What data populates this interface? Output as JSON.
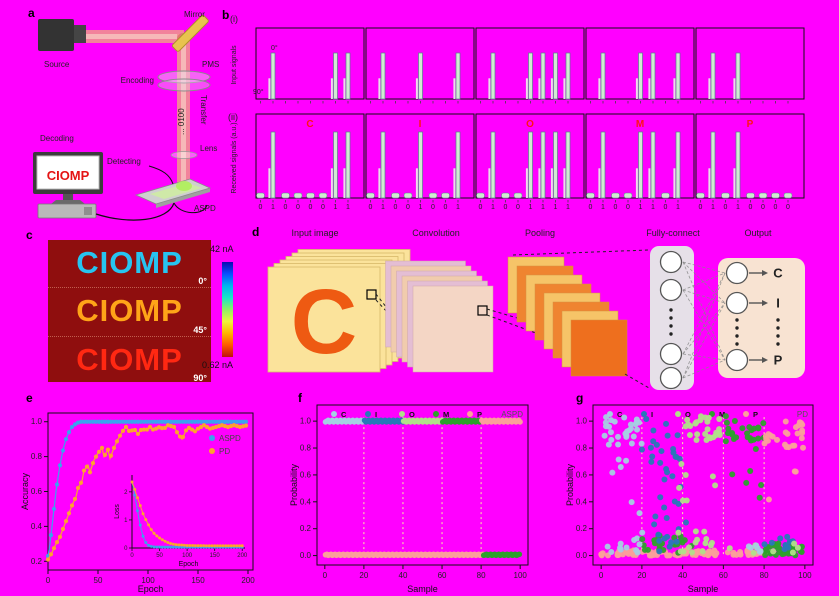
{
  "panel_a": {
    "tag": "a",
    "source": "Source",
    "mirror": "Mirror",
    "pms": "PMS",
    "encoding": "Encoding",
    "transfer": "Transfer",
    "beam_bits": "... 0100",
    "lens": "Lens",
    "decoding": "Decoding",
    "detecting": "Detecting",
    "screen_text": "CIOMP",
    "detector": "ASPD"
  },
  "panel_b": {
    "tag": "b",
    "row_input": {
      "tag": "(i)",
      "ylabel": "Input signals",
      "angle_high": "0°",
      "angle_low": "90°"
    },
    "row_received": {
      "tag": "(ii)",
      "ylabel": "Received signals (a.u.)"
    },
    "letters": [
      "C",
      "I",
      "O",
      "M",
      "P"
    ],
    "letter_color": "#ff1414",
    "bits": [
      [
        0,
        1,
        0,
        0,
        0,
        0,
        1,
        1
      ],
      [
        0,
        1,
        0,
        0,
        1,
        0,
        0,
        1
      ],
      [
        0,
        1,
        0,
        0,
        1,
        1,
        1,
        1
      ],
      [
        0,
        1,
        0,
        0,
        1,
        1,
        0,
        1
      ],
      [
        0,
        1,
        0,
        1,
        0,
        0,
        0,
        0
      ]
    ],
    "spike_fill": "#d2ead2",
    "spike_stroke": "#557f8e"
  },
  "panel_c": {
    "tag": "c",
    "background": "#8f0e0e",
    "images": [
      {
        "text": "CIOMP",
        "angle": "0°",
        "color": "#27c4f0"
      },
      {
        "text": "CIOMP",
        "angle": "45°",
        "color": "#ffa418"
      },
      {
        "text": "CIOMP",
        "angle": "90°",
        "color": "#ff2812"
      }
    ],
    "colorbar": {
      "max_label": "42 nA",
      "min_label": "0.62 nA",
      "stops": [
        "#0b0bb0",
        "#0a50ff",
        "#00b4f0",
        "#19e6c8",
        "#8df066",
        "#eef53c",
        "#ffb400",
        "#ff5a00",
        "#c01010"
      ]
    }
  },
  "panel_d": {
    "tag": "d",
    "stage_labels": [
      "Input image",
      "Convolution",
      "Pooling",
      "Fully-connect",
      "Output"
    ],
    "input_letter": "C",
    "output_letters": [
      "C",
      "I",
      "P"
    ]
  },
  "chart_data": [
    {
      "id": "accuracy",
      "panel_tag": "e",
      "type": "line",
      "xlabel": "Epoch",
      "ylabel": "Accuracy",
      "xlim": [
        0,
        205
      ],
      "ylim": [
        0.15,
        1.05
      ],
      "xticks": [
        0,
        50,
        100,
        150,
        200
      ],
      "yticks": [
        0.2,
        0.4,
        0.6,
        0.8,
        1.0
      ],
      "series": [
        {
          "name": "ASPD",
          "color": "#3ba2ee",
          "points": [
            [
              0,
              0.23
            ],
            [
              2,
              0.3
            ],
            [
              4,
              0.4
            ],
            [
              6,
              0.5
            ],
            [
              8,
              0.6
            ],
            [
              10,
              0.68
            ],
            [
              12,
              0.75
            ],
            [
              14,
              0.81
            ],
            [
              16,
              0.86
            ],
            [
              18,
              0.9
            ],
            [
              20,
              0.93
            ],
            [
              22,
              0.95
            ],
            [
              24,
              0.97
            ],
            [
              26,
              0.98
            ],
            [
              28,
              0.99
            ],
            [
              32,
              1.0
            ],
            [
              200,
              1.0
            ]
          ]
        },
        {
          "name": "PD",
          "color": "#ffa12e",
          "points": [
            [
              0,
              0.21
            ],
            [
              4,
              0.25
            ],
            [
              8,
              0.3
            ],
            [
              12,
              0.34
            ],
            [
              16,
              0.4
            ],
            [
              20,
              0.46
            ],
            [
              24,
              0.52
            ],
            [
              28,
              0.57
            ],
            [
              30,
              0.62
            ],
            [
              34,
              0.66
            ],
            [
              36,
              0.72
            ],
            [
              40,
              0.75
            ],
            [
              42,
              0.71
            ],
            [
              46,
              0.78
            ],
            [
              50,
              0.82
            ],
            [
              54,
              0.85
            ],
            [
              56,
              0.8
            ],
            [
              60,
              0.84
            ],
            [
              62,
              0.79
            ],
            [
              66,
              0.85
            ],
            [
              70,
              0.9
            ],
            [
              74,
              0.94
            ],
            [
              78,
              0.97
            ],
            [
              82,
              0.94
            ],
            [
              86,
              0.96
            ],
            [
              90,
              0.93
            ],
            [
              94,
              0.96
            ],
            [
              98,
              0.95
            ],
            [
              102,
              0.97
            ],
            [
              106,
              0.95
            ],
            [
              110,
              0.97
            ],
            [
              116,
              0.96
            ],
            [
              120,
              0.98
            ],
            [
              126,
              0.97
            ],
            [
              130,
              0.93
            ],
            [
              134,
              0.9
            ],
            [
              138,
              0.95
            ],
            [
              142,
              0.97
            ],
            [
              146,
              0.94
            ],
            [
              150,
              0.96
            ],
            [
              156,
              0.98
            ],
            [
              162,
              0.96
            ],
            [
              168,
              0.97
            ],
            [
              174,
              0.98
            ],
            [
              180,
              0.97
            ],
            [
              186,
              0.98
            ],
            [
              192,
              0.97
            ],
            [
              200,
              0.98
            ]
          ]
        }
      ],
      "inset": {
        "xlabel": "Epoch",
        "ylabel": "Loss",
        "xlim": [
          0,
          205
        ],
        "ylim": [
          0,
          2.6
        ],
        "xticks": [
          0,
          50,
          100,
          150,
          200
        ],
        "yticks": [
          0,
          1,
          2
        ],
        "series": [
          {
            "name": "ASPD",
            "color": "#3ba2ee",
            "points": [
              [
                0,
                2.35
              ],
              [
                4,
                2.0
              ],
              [
                8,
                1.55
              ],
              [
                12,
                1.1
              ],
              [
                16,
                0.72
              ],
              [
                20,
                0.42
              ],
              [
                24,
                0.22
              ],
              [
                28,
                0.12
              ],
              [
                32,
                0.07
              ],
              [
                40,
                0.04
              ],
              [
                60,
                0.03
              ],
              [
                100,
                0.03
              ],
              [
                150,
                0.03
              ],
              [
                200,
                0.03
              ]
            ]
          },
          {
            "name": "PD",
            "color": "#ffa12e",
            "points": [
              [
                0,
                2.35
              ],
              [
                4,
                2.15
              ],
              [
                8,
                1.9
              ],
              [
                12,
                1.68
              ],
              [
                16,
                1.45
              ],
              [
                20,
                1.22
              ],
              [
                24,
                1.05
              ],
              [
                28,
                0.9
              ],
              [
                32,
                0.75
              ],
              [
                36,
                0.62
              ],
              [
                40,
                0.52
              ],
              [
                48,
                0.38
              ],
              [
                56,
                0.28
              ],
              [
                64,
                0.2
              ],
              [
                72,
                0.15
              ],
              [
                80,
                0.12
              ],
              [
                100,
                0.09
              ],
              [
                140,
                0.08
              ],
              [
                200,
                0.08
              ]
            ]
          }
        ]
      }
    },
    {
      "id": "prob-aspd",
      "panel_tag": "f",
      "type": "scatter",
      "device_label": "ASPD",
      "xlabel": "Sample",
      "ylabel": "Probability",
      "xlim": [
        -4,
        104
      ],
      "ylim": [
        -0.07,
        1.12
      ],
      "xticks": [
        0,
        20,
        40,
        60,
        80,
        100
      ],
      "yticks": [
        0,
        0.2,
        0.4,
        0.6,
        0.8,
        1.0
      ],
      "classes": [
        {
          "label": "C",
          "color": "#a6cee3"
        },
        {
          "label": "I",
          "color": "#2878b8"
        },
        {
          "label": "O",
          "color": "#b2df8a"
        },
        {
          "label": "M",
          "color": "#2ea02c"
        },
        {
          "label": "P",
          "color": "#fb9f9b"
        }
      ],
      "divider_x": [
        20,
        40,
        60,
        80
      ],
      "divider_color": "#f4f2a2",
      "bands": {
        "top": [
          {
            "class": "C",
            "range": [
              0,
              20
            ]
          },
          {
            "class": "I",
            "range": [
              20,
              40
            ]
          },
          {
            "class": "O",
            "range": [
              40,
              60
            ]
          },
          {
            "class": "M",
            "range": [
              60,
              80
            ]
          },
          {
            "class": "P",
            "range": [
              80,
              100
            ]
          }
        ],
        "bottom": [
          {
            "class": "P",
            "range": [
              0,
              81
            ]
          },
          {
            "class": "M",
            "range": [
              81,
              100
            ]
          }
        ]
      }
    },
    {
      "id": "prob-pd",
      "panel_tag": "g",
      "type": "scatter",
      "device_label": "PD",
      "xlabel": "Sample",
      "ylabel": "Probability",
      "xlim": [
        -4,
        104
      ],
      "ylim": [
        -0.07,
        1.12
      ],
      "xticks": [
        0,
        20,
        40,
        60,
        80,
        100
      ],
      "yticks": [
        0,
        0.2,
        0.4,
        0.6,
        0.8,
        1.0
      ],
      "classes": [
        {
          "label": "C",
          "color": "#a6cee3"
        },
        {
          "label": "I",
          "color": "#2878b8"
        },
        {
          "label": "O",
          "color": "#b2df8a"
        },
        {
          "label": "M",
          "color": "#2ea02c"
        },
        {
          "label": "P",
          "color": "#fb9f9b"
        }
      ],
      "divider_x": [
        20,
        40,
        60,
        80
      ],
      "divider_color": "#f4f2a2",
      "seed": 7,
      "clusters": [
        {
          "class": "C",
          "x": [
            1,
            20
          ],
          "y": [
            0.82,
            1.03
          ],
          "n": 28
        },
        {
          "class": "C",
          "x": [
            1,
            20
          ],
          "y": [
            0.6,
            0.8
          ],
          "n": 4
        },
        {
          "class": "C",
          "x": [
            14,
            22
          ],
          "y": [
            0.1,
            0.45
          ],
          "n": 4
        },
        {
          "class": "I",
          "x": [
            20,
            40
          ],
          "y": [
            0.62,
            1.02
          ],
          "n": 20
        },
        {
          "class": "I",
          "x": [
            22,
            40
          ],
          "y": [
            0.2,
            0.6
          ],
          "n": 8
        },
        {
          "class": "O",
          "x": [
            40,
            60
          ],
          "y": [
            0.85,
            1.04
          ],
          "n": 26
        },
        {
          "class": "O",
          "x": [
            38,
            60
          ],
          "y": [
            0.3,
            0.8
          ],
          "n": 7
        },
        {
          "class": "M",
          "x": [
            60,
            80
          ],
          "y": [
            0.85,
            1.04
          ],
          "n": 24
        },
        {
          "class": "M",
          "x": [
            62,
            80
          ],
          "y": [
            0.25,
            0.8
          ],
          "n": 6
        },
        {
          "class": "P",
          "x": [
            80,
            100
          ],
          "y": [
            0.8,
            1.0
          ],
          "n": 26
        },
        {
          "class": "P",
          "x": [
            82,
            100
          ],
          "y": [
            0.35,
            0.7
          ],
          "n": 3
        },
        {
          "class": "P",
          "x": [
            0,
            82
          ],
          "y": [
            0.0,
            0.04
          ],
          "n": 85
        },
        {
          "class": "M",
          "x": [
            80,
            100
          ],
          "y": [
            0.0,
            0.09
          ],
          "n": 35
        },
        {
          "class": "M",
          "x": [
            20,
            46
          ],
          "y": [
            0.02,
            0.16
          ],
          "n": 22
        },
        {
          "class": "I",
          "x": [
            26,
            46
          ],
          "y": [
            0.02,
            0.3
          ],
          "n": 12
        },
        {
          "class": "C",
          "x": [
            1,
            22
          ],
          "y": [
            0.02,
            0.12
          ],
          "n": 10
        },
        {
          "class": "O",
          "x": [
            34,
            60
          ],
          "y": [
            0.02,
            0.22
          ],
          "n": 14
        },
        {
          "class": "I",
          "x": [
            80,
            100
          ],
          "y": [
            0.03,
            0.15
          ],
          "n": 10
        },
        {
          "class": "O",
          "x": [
            60,
            100
          ],
          "y": [
            0.02,
            0.1
          ],
          "n": 8
        },
        {
          "class": "C",
          "x": [
            40,
            80
          ],
          "y": [
            0.02,
            0.08
          ],
          "n": 6
        }
      ]
    }
  ]
}
